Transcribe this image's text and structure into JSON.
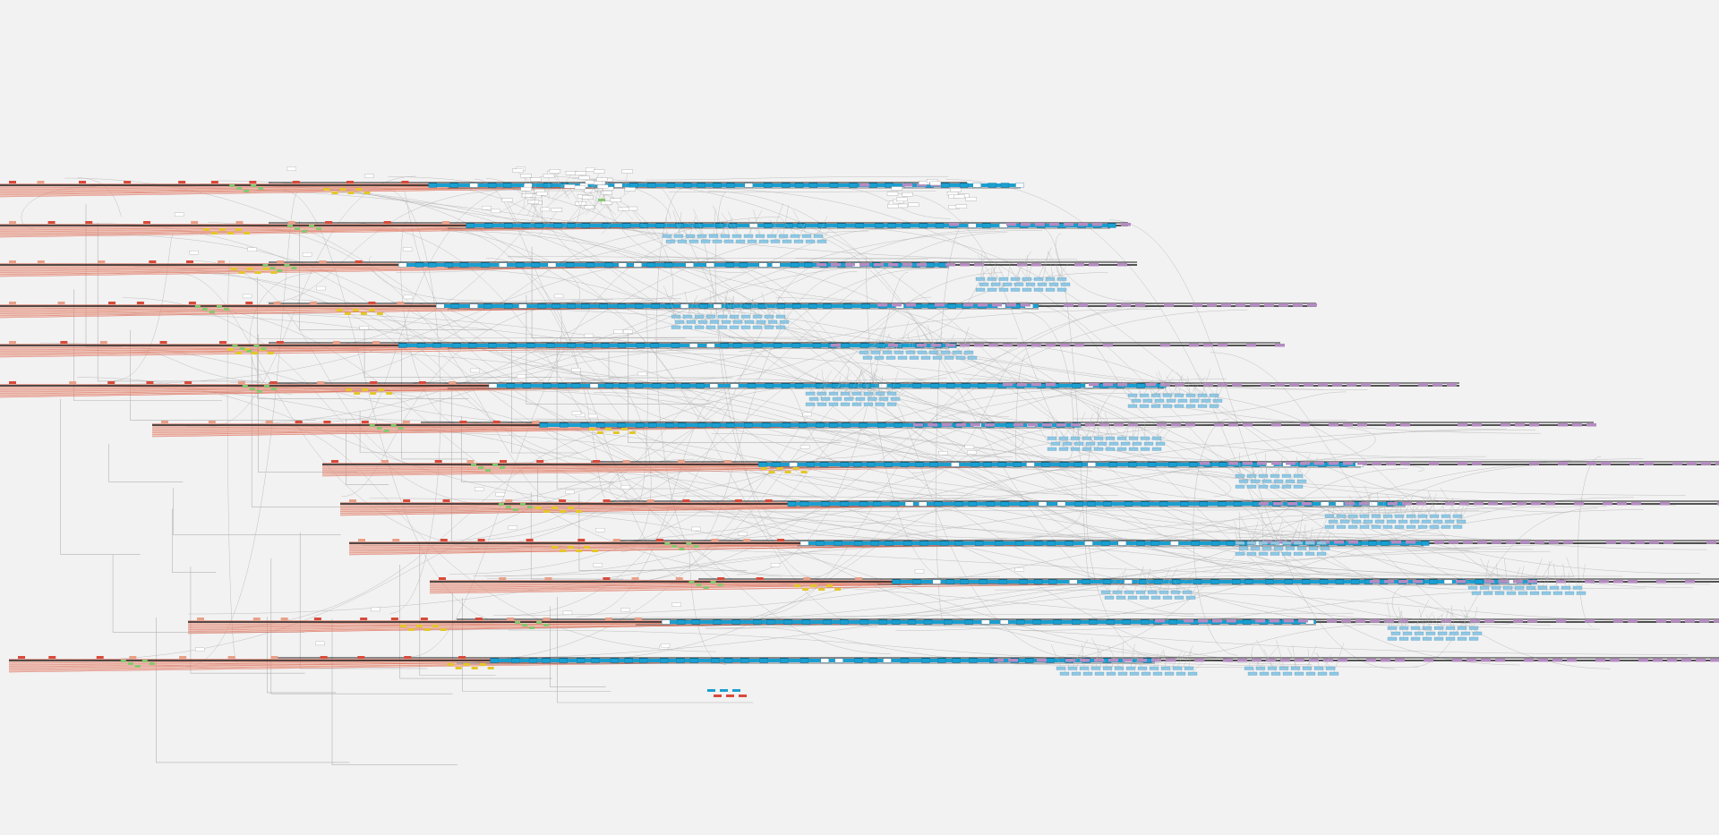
{
  "view": {
    "background": "#f2f2f2",
    "description_free": true
  },
  "palette": {
    "cyan": "#1a9fd1",
    "dark": "#1e1e1e",
    "salmon": "#e8a088",
    "red": "#d84a3a",
    "purple": "#b58bc2",
    "yellow": "#e3c72a",
    "green": "#86c870",
    "light_blue": "#8fc8e4",
    "edge": "#b3b3b3",
    "box": "#ffffff"
  },
  "node_categories": [
    "cyan",
    "dark",
    "salmon",
    "red",
    "purple",
    "yellow",
    "green",
    "light_blue"
  ],
  "graph": {
    "lane_count": 13,
    "top_cluster_count": 1,
    "legend_visible": false
  }
}
